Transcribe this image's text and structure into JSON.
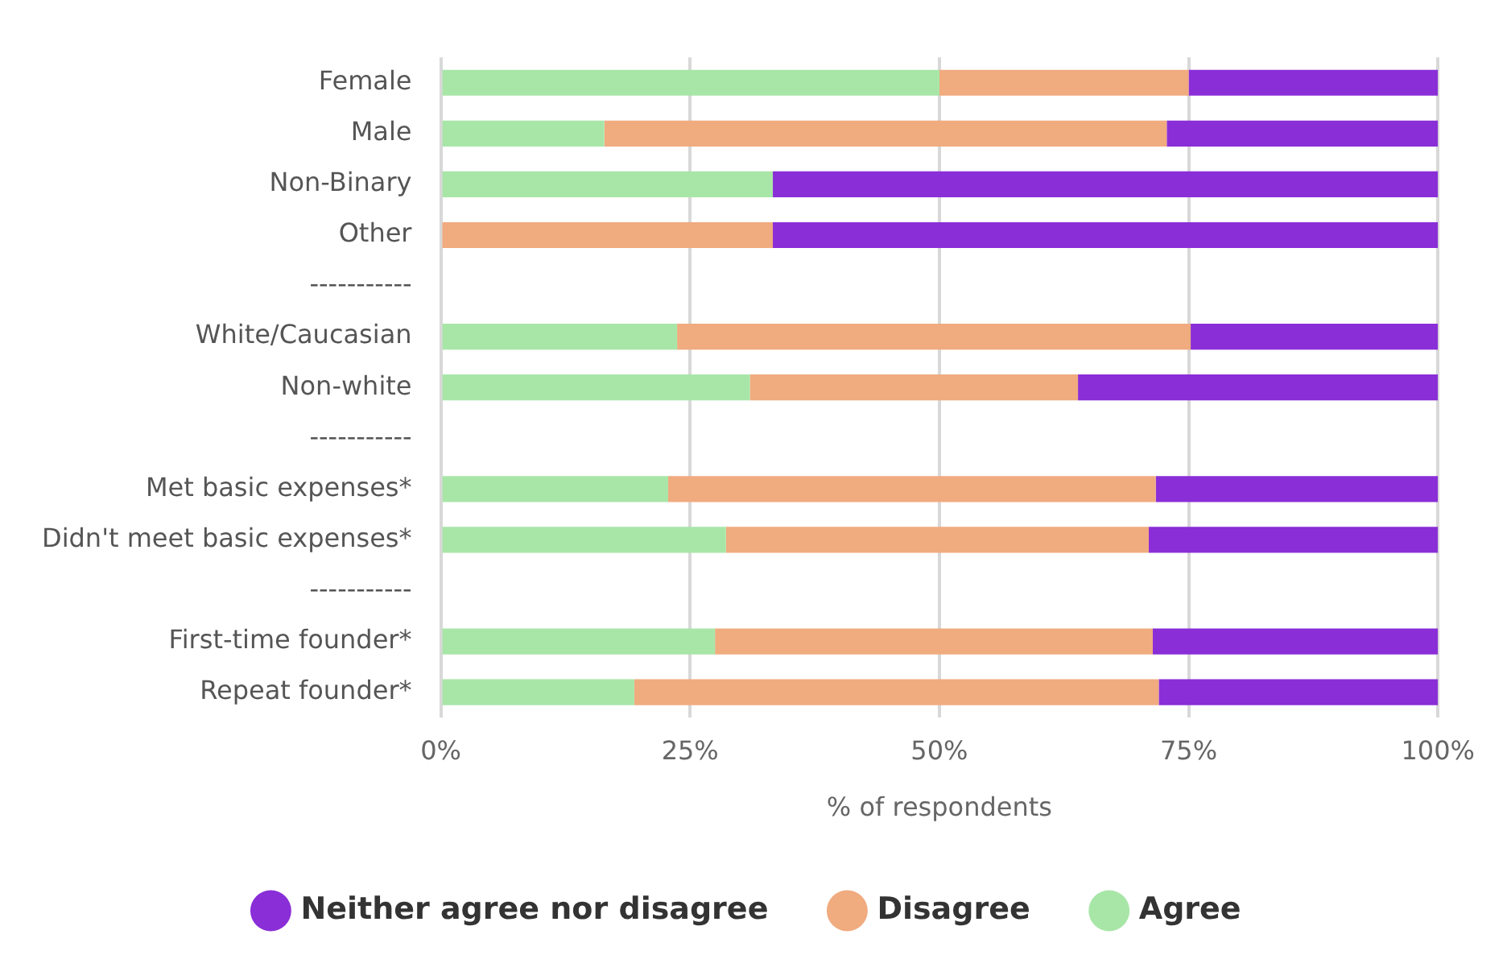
{
  "chart_data": {
    "type": "bar",
    "orientation": "horizontal",
    "stacked": true,
    "categories": [
      "Female",
      "Male",
      "Non-Binary",
      "Other",
      "-----------",
      "White/Caucasian",
      "Non-white",
      "-----------",
      "Met basic expenses*",
      "Didn't meet basic expenses*",
      "-----------",
      "First-time founder*",
      "Repeat founder*"
    ],
    "series": [
      {
        "name": "Agree",
        "color": "#a8e6a8",
        "values": [
          50,
          16.4,
          33.3,
          0,
          null,
          23.7,
          31,
          null,
          22.8,
          28.6,
          null,
          27.5,
          19.4
        ]
      },
      {
        "name": "Disagree",
        "color": "#f0ab7f",
        "values": [
          25,
          56.4,
          0,
          33.3,
          null,
          51.5,
          32.9,
          null,
          48.9,
          42.4,
          null,
          43.9,
          52.6
        ]
      },
      {
        "name": "Neither agree nor disagree",
        "color": "#8a2ed8",
        "values": [
          25,
          27.2,
          66.7,
          66.7,
          null,
          24.8,
          36.1,
          null,
          28.3,
          29,
          null,
          28.6,
          28
        ]
      }
    ],
    "xlabel": "% of respondents",
    "xlim": [
      0,
      100
    ],
    "xticks": [
      {
        "value": 0,
        "label": "0%"
      },
      {
        "value": 25,
        "label": "25%"
      },
      {
        "value": 50,
        "label": "50%"
      },
      {
        "value": 75,
        "label": "75%"
      },
      {
        "value": 100,
        "label": "100%"
      }
    ],
    "grid": "x",
    "legend": "bottom"
  }
}
